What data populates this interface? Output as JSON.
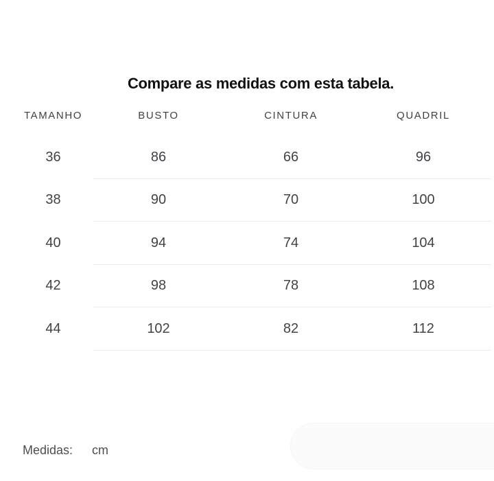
{
  "page": {
    "title": "Compare as medidas com esta tabela."
  },
  "table": {
    "columns": [
      "TAMANHO",
      "BUSTO",
      "CINTURA",
      "QUADRIL"
    ],
    "rows": [
      [
        "36",
        "86",
        "66",
        "96"
      ],
      [
        "38",
        "90",
        "70",
        "100"
      ],
      [
        "40",
        "94",
        "74",
        "104"
      ],
      [
        "42",
        "98",
        "78",
        "108"
      ],
      [
        "44",
        "102",
        "82",
        "112"
      ]
    ]
  },
  "footer": {
    "label": "Medidas:",
    "unit": "cm"
  },
  "colors": {
    "background": "#ffffff",
    "title_text": "#121212",
    "header_text": "#3e4247",
    "cell_text": "#404347",
    "divider": "#ececec",
    "footer_text": "#4b4e52",
    "pill_background": "#fbfbfb"
  }
}
